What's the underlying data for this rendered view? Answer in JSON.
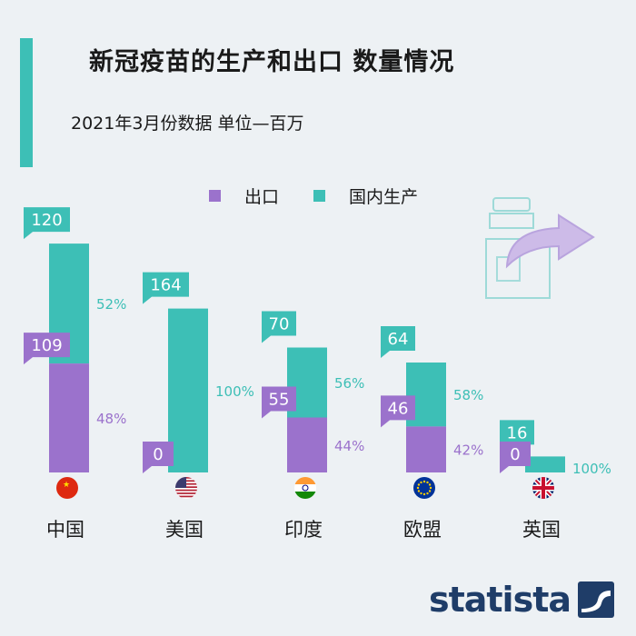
{
  "title": "新冠疫苗的生产和出口 数量情况",
  "subtitle": "2021年3月份数据 单位—百万",
  "legend": {
    "export_label": "出口",
    "domestic_label": "国内生产"
  },
  "colors": {
    "export": "#9b72cc",
    "domestic": "#3dbfb6",
    "title_bar": "#3dbfb6",
    "logo": "#1f3d68"
  },
  "logo_text": "statista",
  "chart_data": {
    "type": "bar",
    "stacked": true,
    "categories": [
      "中国",
      "美国",
      "印度",
      "欧盟",
      "英国"
    ],
    "series": [
      {
        "name": "出口",
        "values": [
          109,
          0,
          55,
          46,
          0
        ],
        "pct_labels": [
          "48%",
          "",
          "44%",
          "42%",
          ""
        ]
      },
      {
        "name": "国内生产",
        "values": [
          120,
          164,
          70,
          64,
          16
        ],
        "pct_labels": [
          "52%",
          "100%",
          "56%",
          "58%",
          "100%"
        ]
      }
    ],
    "flag_icons": [
      "flag-china-icon",
      "flag-usa-icon",
      "flag-india-icon",
      "flag-eu-icon",
      "flag-uk-icon"
    ]
  }
}
